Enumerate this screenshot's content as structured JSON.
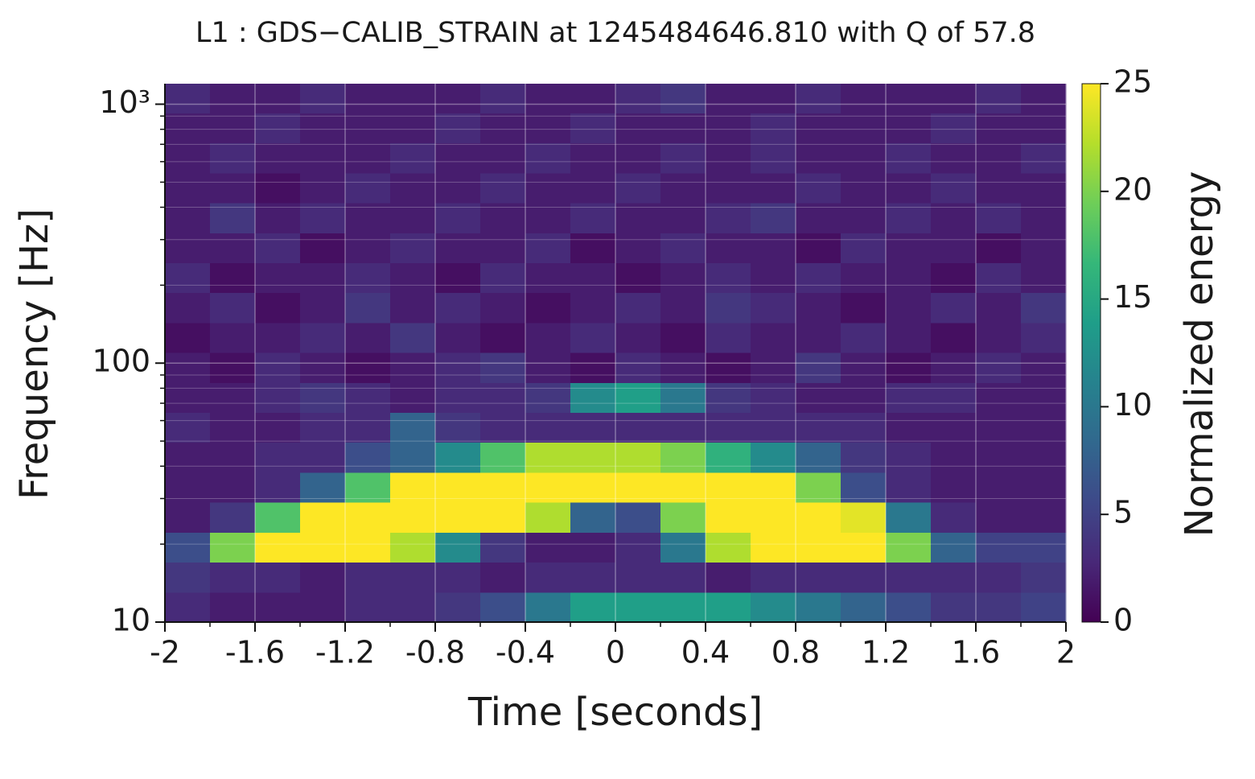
{
  "chart_data": {
    "type": "spectrogram",
    "title": "L1 : GDS−CALIB_STRAIN at 1245484646.810 with Q of 57.8",
    "x_label": "Time [seconds]",
    "y_label": "Frequency [Hz]",
    "colorbar_label": "Normalized energy",
    "colormap": "viridis",
    "y_log": true,
    "grid": true,
    "xlim": [
      -2,
      2
    ],
    "xticks": [
      -2,
      -1.6,
      -1.2,
      -0.8,
      -0.4,
      0,
      0.4,
      0.8,
      1.2,
      1.6,
      2
    ],
    "xminorticks": [
      -1.8,
      -1.4,
      -1.0,
      -0.6,
      -0.2,
      0.2,
      0.6,
      1.0,
      1.4,
      1.8
    ],
    "ylim": [
      10,
      1200
    ],
    "yticks": [
      10,
      100,
      {
        "value": 1000,
        "label": "10³"
      }
    ],
    "yminorticks": [
      20,
      30,
      40,
      50,
      60,
      70,
      80,
      90,
      200,
      300,
      400,
      500,
      600,
      700,
      800,
      900
    ],
    "clim": [
      0,
      25
    ],
    "cticks": [
      0,
      5,
      10,
      15,
      20,
      25
    ],
    "xbins": [
      -2,
      -1.8,
      -1.6,
      -1.4,
      -1.2,
      -1.0,
      -0.8,
      -0.6,
      -0.4,
      -0.2,
      0,
      0.2,
      0.4,
      0.6,
      0.8,
      1.0,
      1.2,
      1.4,
      1.6,
      1.8,
      2
    ],
    "ybins": [
      10,
      13.05,
      17.03,
      22.23,
      29.01,
      37.87,
      49.42,
      64.5,
      84.2,
      109.9,
      143.4,
      187.1,
      244.2,
      318.7,
      416,
      543,
      708.7,
      925,
      1200
    ],
    "z": [
      [
        3,
        2,
        2,
        2,
        3,
        3,
        4,
        6,
        10,
        14,
        14,
        14,
        14,
        12,
        10,
        8,
        6,
        4,
        4,
        5
      ],
      [
        4,
        3,
        3,
        2,
        3,
        3,
        3,
        2,
        3,
        3,
        3,
        3,
        2,
        3,
        3,
        3,
        3,
        3,
        3,
        4
      ],
      [
        6,
        20,
        25,
        25,
        25,
        22,
        12,
        4,
        2,
        2,
        3,
        10,
        22,
        25,
        25,
        25,
        20,
        8,
        5,
        5
      ],
      [
        2,
        4,
        18,
        25,
        25,
        25,
        25,
        25,
        22,
        8,
        6,
        20,
        25,
        25,
        25,
        24,
        10,
        3,
        2,
        2
      ],
      [
        2,
        2,
        3,
        8,
        18,
        25,
        25,
        25,
        25,
        25,
        25,
        25,
        25,
        25,
        20,
        6,
        3,
        2,
        2,
        2
      ],
      [
        2,
        2,
        3,
        3,
        6,
        8,
        12,
        18,
        22,
        22,
        22,
        20,
        16,
        12,
        8,
        4,
        3,
        2,
        2,
        2
      ],
      [
        3,
        2,
        2,
        3,
        3,
        8,
        4,
        3,
        3,
        3,
        3,
        3,
        3,
        3,
        3,
        3,
        2,
        2,
        2,
        2
      ],
      [
        2,
        2,
        3,
        4,
        3,
        2,
        3,
        3,
        4,
        12,
        14,
        10,
        4,
        3,
        2,
        2,
        3,
        3,
        2,
        2
      ],
      [
        2,
        1,
        3,
        2,
        1,
        2,
        3,
        4,
        2,
        1,
        3,
        2,
        1,
        2,
        4,
        2,
        1,
        2,
        3,
        2
      ],
      [
        1,
        2,
        2,
        3,
        2,
        4,
        2,
        1,
        2,
        3,
        2,
        1,
        3,
        2,
        2,
        3,
        2,
        1,
        2,
        3
      ],
      [
        2,
        3,
        1,
        2,
        4,
        2,
        3,
        2,
        1,
        2,
        3,
        2,
        4,
        3,
        2,
        1,
        2,
        3,
        2,
        4
      ],
      [
        3,
        1,
        2,
        2,
        3,
        2,
        1,
        3,
        2,
        2,
        1,
        2,
        3,
        2,
        3,
        2,
        2,
        1,
        3,
        2
      ],
      [
        2,
        2,
        3,
        1,
        2,
        3,
        2,
        2,
        3,
        1,
        2,
        3,
        2,
        2,
        1,
        3,
        2,
        2,
        1,
        2
      ],
      [
        2,
        4,
        2,
        3,
        2,
        2,
        3,
        2,
        2,
        3,
        2,
        2,
        3,
        4,
        2,
        2,
        3,
        2,
        3,
        2
      ],
      [
        2,
        2,
        1,
        2,
        3,
        2,
        2,
        3,
        2,
        2,
        3,
        2,
        2,
        2,
        3,
        2,
        2,
        3,
        2,
        2
      ],
      [
        2,
        3,
        2,
        2,
        2,
        3,
        2,
        2,
        3,
        2,
        2,
        3,
        2,
        3,
        2,
        2,
        3,
        2,
        2,
        3
      ],
      [
        2,
        2,
        3,
        2,
        2,
        2,
        3,
        2,
        2,
        3,
        2,
        2,
        2,
        3,
        2,
        2,
        2,
        3,
        2,
        2
      ],
      [
        3,
        2,
        2,
        3,
        2,
        2,
        2,
        3,
        2,
        2,
        3,
        4,
        2,
        2,
        3,
        2,
        2,
        2,
        3,
        2
      ]
    ]
  }
}
